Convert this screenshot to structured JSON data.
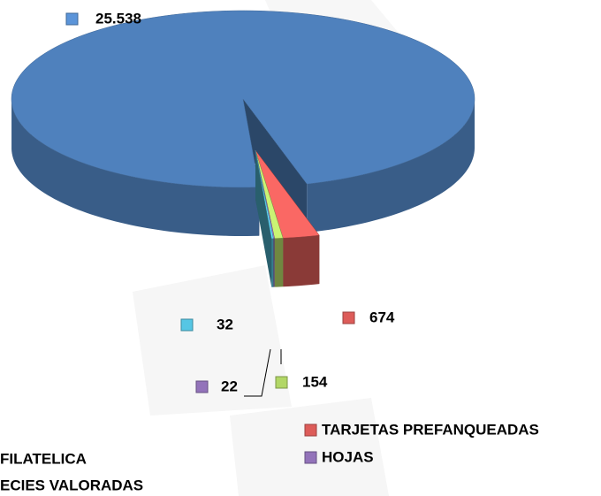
{
  "chart_data": {
    "type": "pie3d",
    "categories": [
      "ECIES VALORADAS",
      "TARJETAS PREFANQUEADAS",
      null,
      "HOJAS",
      "FILATELICA"
    ],
    "values": [
      25538,
      674,
      154,
      22,
      32
    ],
    "value_labels": [
      "25.538",
      "674",
      "154",
      "22",
      "32"
    ],
    "colors": [
      "#4f81bd",
      "#c0504d",
      "#9bbb59",
      "#8064a2",
      "#4bacc6"
    ]
  }
}
